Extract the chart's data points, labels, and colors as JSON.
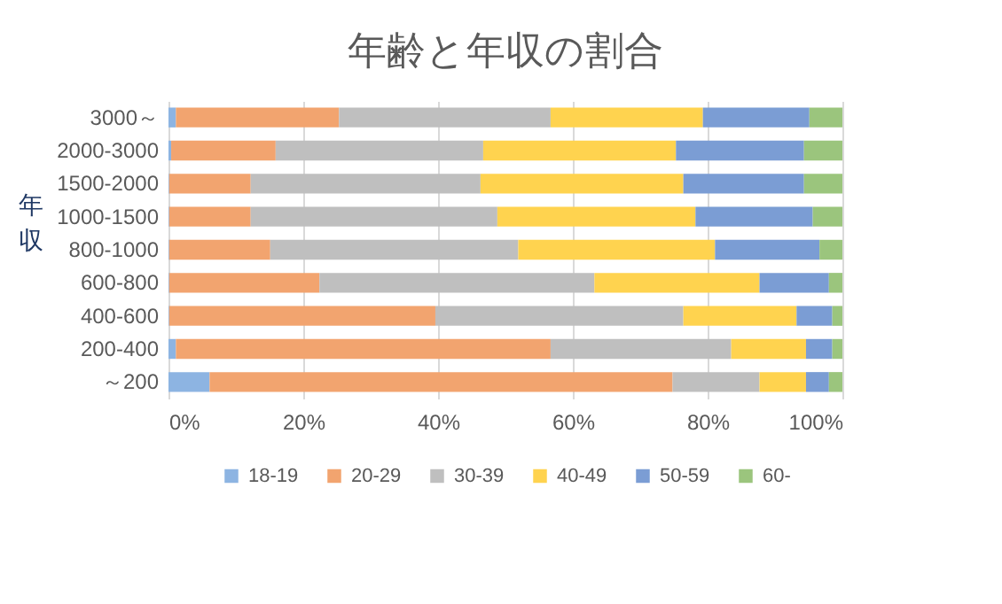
{
  "chart_data": {
    "type": "bar",
    "orientation": "horizontal",
    "stacked": true,
    "title": "年齢と年収の割合",
    "ylabel": "年収",
    "categories": [
      "3000～",
      "2000-3000",
      "1500-2000",
      "1000-1500",
      "800-1000",
      "600-800",
      "400-600",
      "200-400",
      "～200"
    ],
    "series": [
      {
        "name": "18-19",
        "color": "#8db4e2",
        "values": [
          1.1,
          0.4,
          0.1,
          0.1,
          0.1,
          0.1,
          0.1,
          1.1,
          6.1
        ]
      },
      {
        "name": "20-29",
        "color": "#f2a46f",
        "values": [
          24.2,
          15.5,
          12.1,
          12.1,
          15.0,
          22.3,
          39.5,
          55.6,
          68.7
        ]
      },
      {
        "name": "30-39",
        "color": "#bfbfbf",
        "values": [
          31.4,
          30.8,
          34.1,
          36.6,
          36.8,
          40.8,
          36.8,
          26.8,
          12.9
        ]
      },
      {
        "name": "40-49",
        "color": "#ffd34f",
        "values": [
          22.6,
          28.6,
          30.1,
          29.4,
          29.2,
          24.5,
          16.8,
          11.1,
          6.9
        ]
      },
      {
        "name": "50-59",
        "color": "#7b9dd4",
        "values": [
          15.8,
          19.0,
          17.9,
          17.4,
          15.5,
          10.3,
          5.3,
          3.9,
          3.4
        ]
      },
      {
        "name": "60-",
        "color": "#9bc57d",
        "values": [
          4.9,
          5.7,
          5.7,
          4.4,
          3.4,
          2.0,
          1.5,
          1.5,
          2.0
        ]
      }
    ],
    "xlim": [
      0,
      100
    ],
    "xticks": [
      {
        "value": 0,
        "label": "0%"
      },
      {
        "value": 20,
        "label": "20%"
      },
      {
        "value": 40,
        "label": "40%"
      },
      {
        "value": 60,
        "label": "60%"
      },
      {
        "value": 80,
        "label": "80%"
      },
      {
        "value": 100,
        "label": "100%"
      }
    ],
    "grid": "x",
    "legend": "bottom"
  }
}
